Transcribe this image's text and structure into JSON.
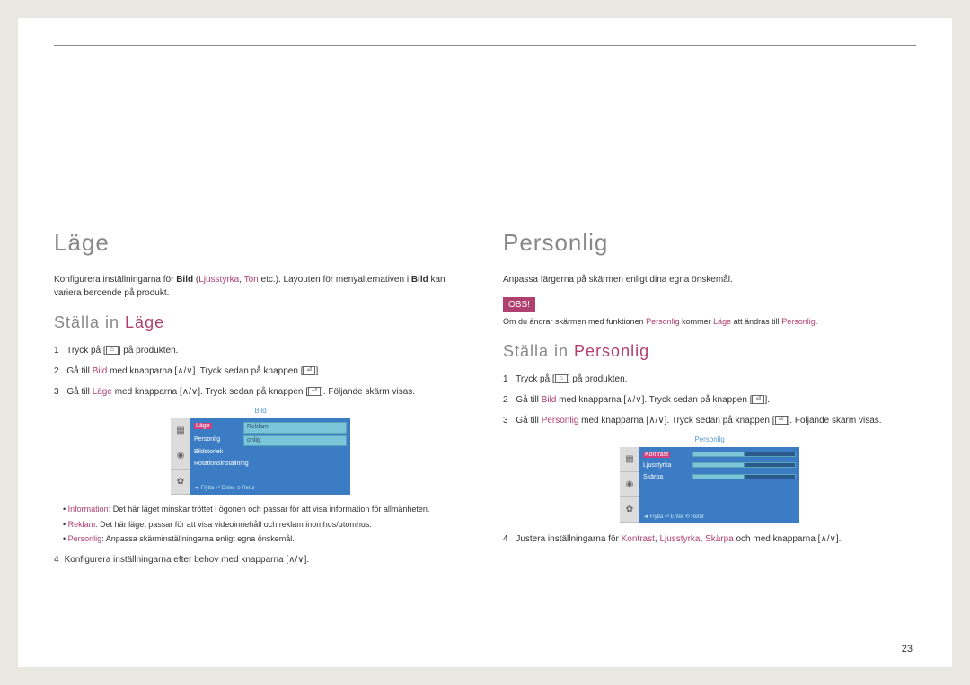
{
  "page_number": "23",
  "left": {
    "title": "Läge",
    "intro_pre": "Konfigurera inställningarna för ",
    "intro_bold1": "Bild",
    "intro_paren_open": " (",
    "intro_acc1": "Ljusstyrka",
    "intro_comma": ", ",
    "intro_acc2": "Ton",
    "intro_paren_close": " etc.). Layouten för menyalternativen i ",
    "intro_bold2": "Bild",
    "intro_tail": " kan variera beroende på produkt.",
    "sub_pre": "Ställa in ",
    "sub_acc": "Läge",
    "steps": {
      "s1_pre": "Tryck på [",
      "s1_icon": "⌂",
      "s1_post": "] på produkten.",
      "s2_pre": "Gå till ",
      "s2_acc": "Bild",
      "s2_mid": " med knapparna [",
      "s2_arrows": "∧/∨",
      "s2_post": "]. Tryck sedan på knappen [",
      "s2_enter": "⏎",
      "s2_end": "].",
      "s3_pre": "Gå till ",
      "s3_acc": "Läge",
      "s3_mid": " med knapparna [",
      "s3_arrows": "∧/∨",
      "s3_post": "]. Tryck sedan på knappen [",
      "s3_enter": "⏎",
      "s3_end": "]. Följande skärm visas.",
      "s4": "Konfigurera inställningarna efter behov med knapparna [∧/∨]."
    },
    "bullets": {
      "b1_acc": "Information",
      "b1": ": Det här läget minskar tröttet i ögonen och passar för att visa information för allmänheten.",
      "b2_acc": "Reklam",
      "b2": ": Det här läget passar för att visa videoinnehåll och reklam inomhus/utomhus.",
      "b3_acc": "Personlig",
      "b3": ": Anpassa skärminställningarna enligt egna önskemål."
    },
    "screenshot": {
      "title": "Bild",
      "row1_label": "Läge",
      "row1_val": "Reklam",
      "row2_label": "Personlig",
      "row2_val": "onlig",
      "row3_label": "Bildstorlek",
      "row4_label": "Rotationsinställning",
      "footer": "◄ Flytta   ⏎ Enter   ⟲ Retur"
    }
  },
  "right": {
    "title": "Personlig",
    "intro": "Anpassa färgerna på skärmen enligt dina egna önskemål.",
    "obs": "OBS!",
    "note_pre": "Om du ändrar skärmen med funktionen ",
    "note_acc1": "Personlig",
    "note_mid": " kommer ",
    "note_acc2": "Läge",
    "note_mid2": " att ändras till ",
    "note_acc3": "Personlig",
    "note_end": ".",
    "sub_pre": "Ställa in ",
    "sub_acc": "Personlig",
    "steps": {
      "s1_pre": "Tryck på [",
      "s1_icon": "⌂",
      "s1_post": "] på produkten.",
      "s2_pre": "Gå till ",
      "s2_acc": "Bild",
      "s2_mid": " med knapparna [",
      "s2_arrows": "∧/∨",
      "s2_post": "]. Tryck sedan på knappen [",
      "s2_enter": "⏎",
      "s2_end": "].",
      "s3_pre": "Gå till ",
      "s3_acc": "Personlig",
      "s3_mid": " med knapparna [",
      "s3_arrows": "∧/∨",
      "s3_post": "]. Tryck sedan på knappen [",
      "s3_enter": "⏎",
      "s3_end": "]. Följande skärm visas.",
      "s4_pre": "Justera inställningarna för ",
      "s4_a1": "Kontrast",
      "s4_c1": ", ",
      "s4_a2": "Ljusstyrka",
      "s4_c2": ", ",
      "s4_a3": "Skärpa",
      "s4_post": " och med knapparna [∧/∨]."
    },
    "screenshot": {
      "title": "Personlig",
      "row1_label": "Kontrast",
      "row2_label": "Ljusstyrka",
      "row3_label": "Skärpa",
      "footer": "◄ Flytta   ⏎ Enter   ⟲ Retur"
    }
  }
}
